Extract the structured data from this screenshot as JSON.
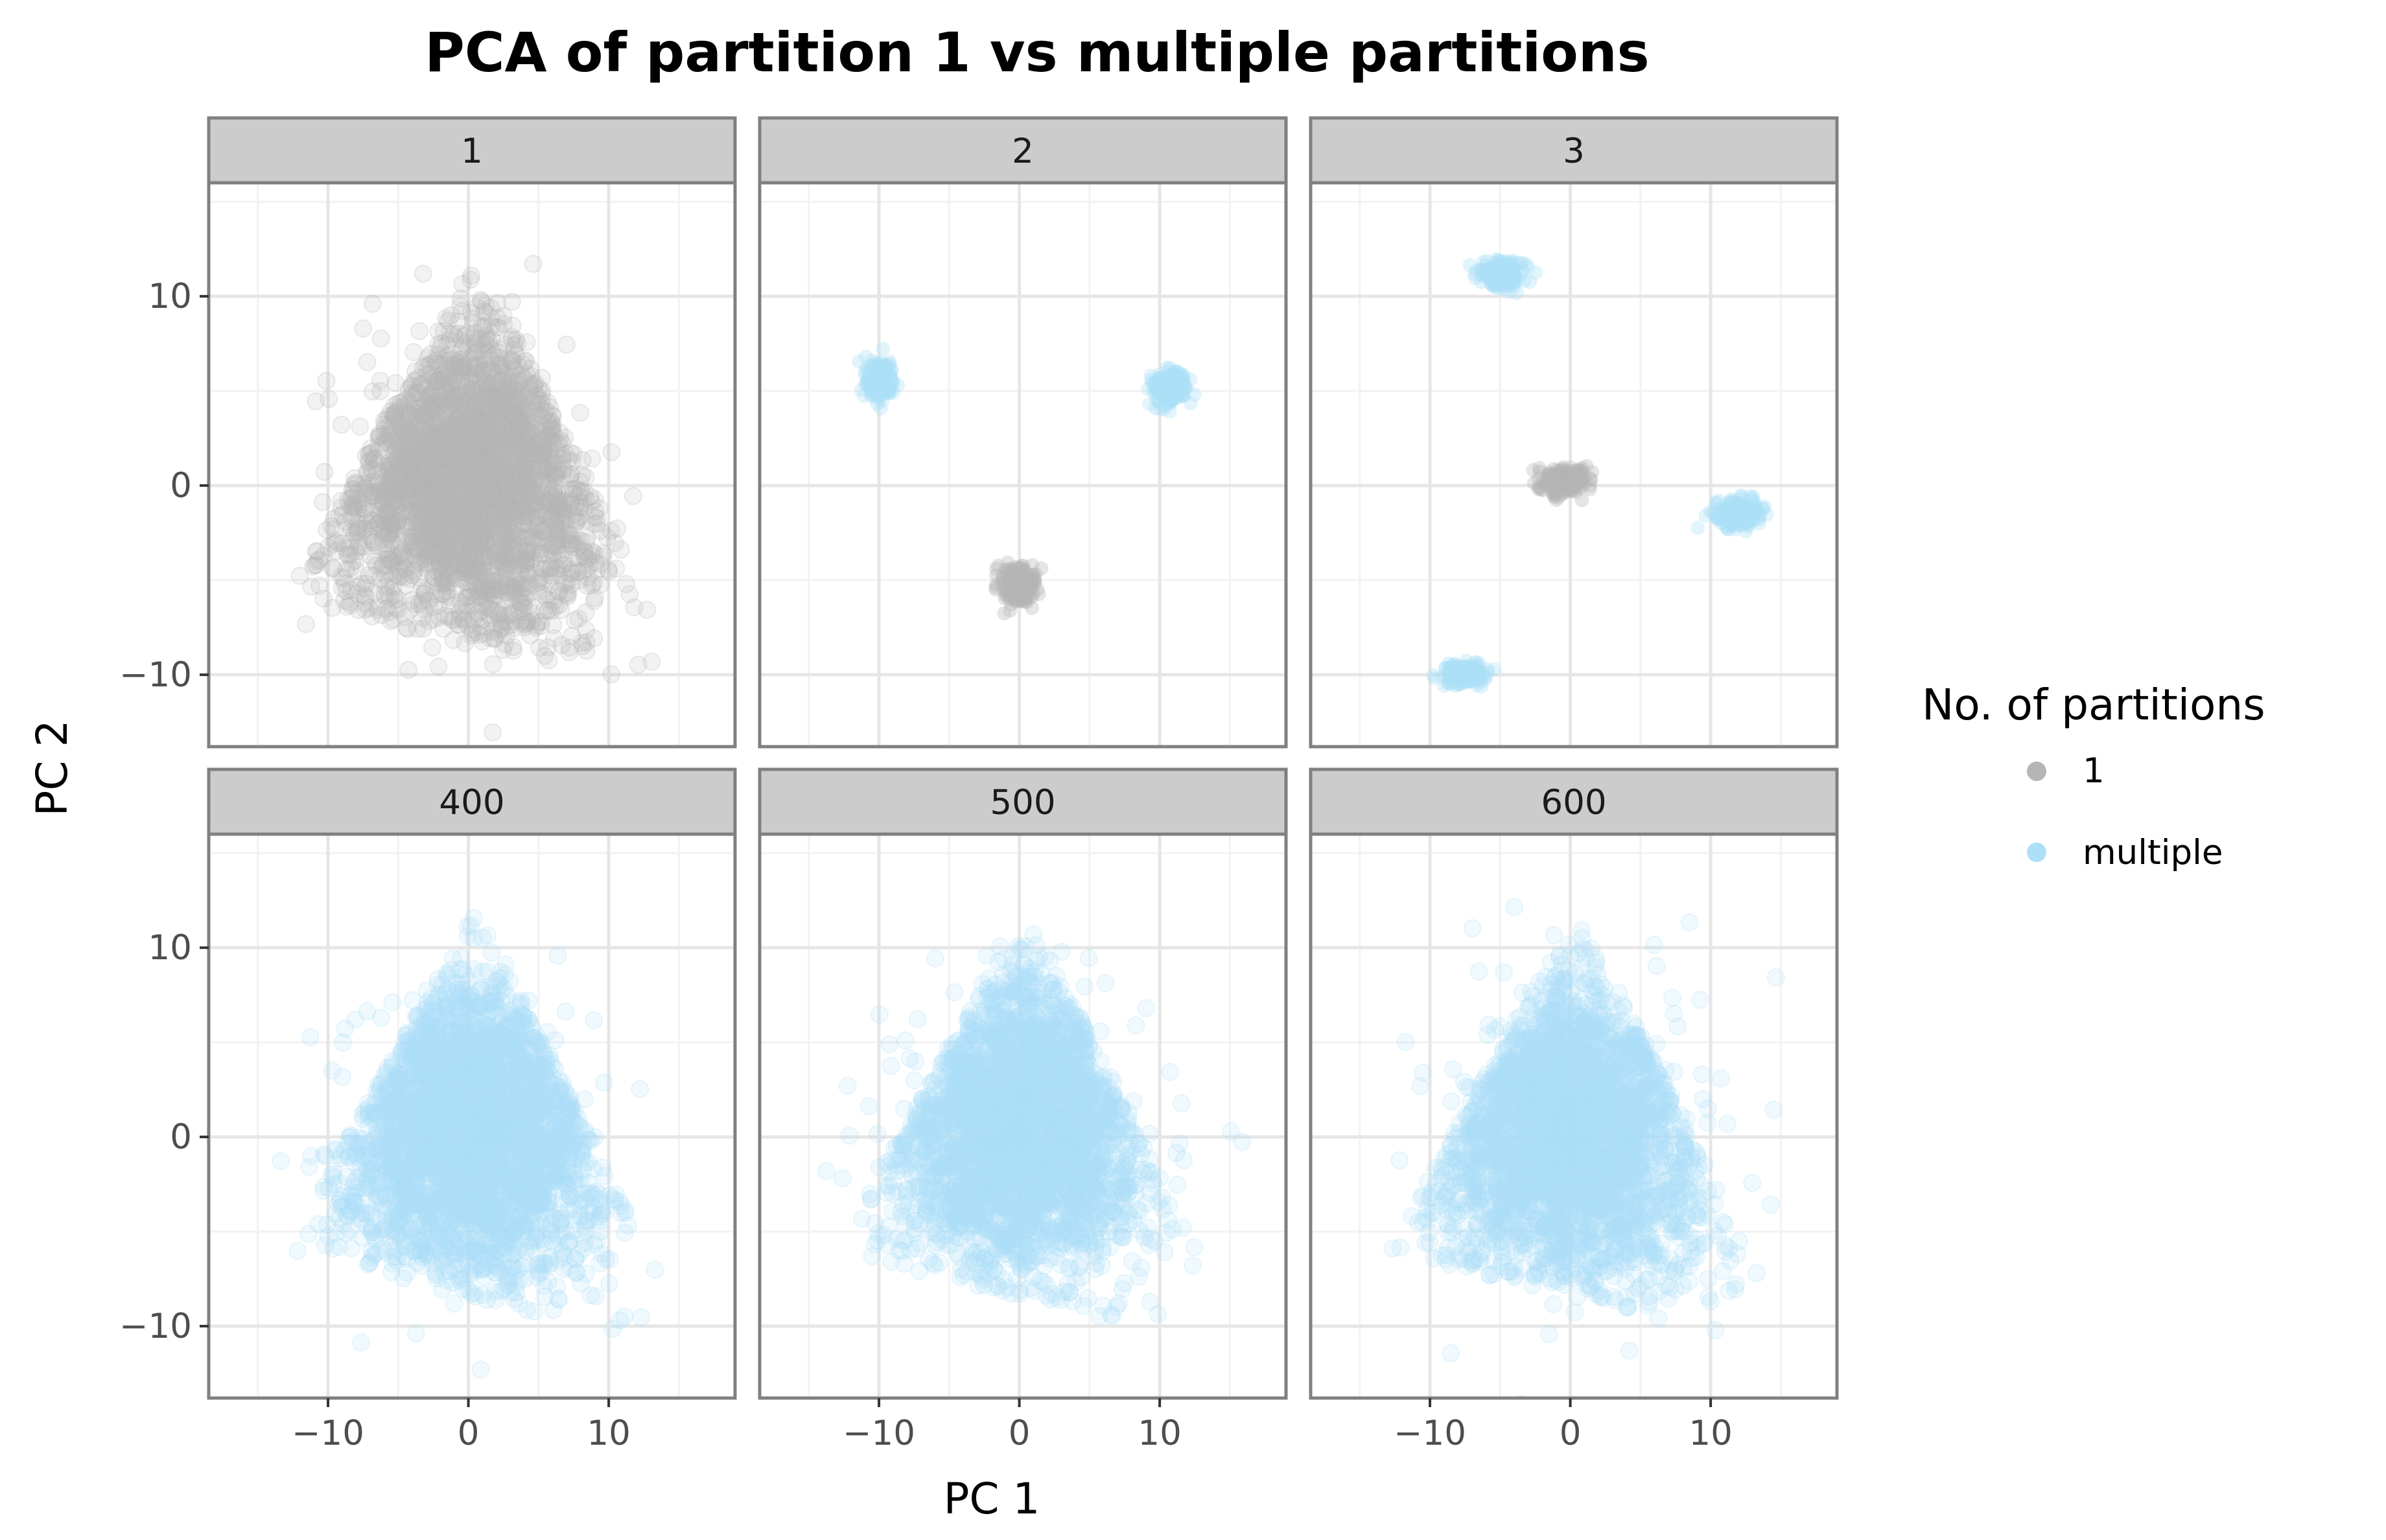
{
  "chart_data": {
    "type": "scatter",
    "title": "PCA of partition 1 vs multiple partitions",
    "xlabel": "PC 1",
    "ylabel": "PC 2",
    "xlim": [
      -18.5,
      19
    ],
    "ylim": [
      -13.8,
      16
    ],
    "x_ticks": [
      -10,
      0,
      10
    ],
    "y_ticks": [
      -10,
      0,
      10
    ],
    "x_tick_labels": [
      "−10",
      "0",
      "10"
    ],
    "y_tick_labels": [
      "−10",
      "0",
      "10"
    ],
    "grid": true,
    "facet_layout": "2 rows x 3 columns, shared axes",
    "legend": {
      "title": "No. of partitions",
      "position": "right",
      "entries": [
        {
          "label": "1",
          "color": "#B5B5B5"
        },
        {
          "label": "multiple",
          "color": "#ADDFF7"
        }
      ]
    },
    "panels": [
      {
        "label": "1",
        "groups": [
          {
            "series": "1",
            "shape": "triangle-cloud",
            "vertices": [
              [
                -13,
                -6
              ],
              [
                0.5,
                12
              ],
              [
                16.5,
                -11.5
              ]
            ],
            "center": [
              0,
              0.5
            ],
            "approx_n": 4000
          }
        ]
      },
      {
        "label": "2",
        "groups": [
          {
            "series": "multiple",
            "shape": "cluster",
            "center": [
              -10,
              5.6
            ],
            "spread": [
              0.9,
              0.9
            ]
          },
          {
            "series": "multiple",
            "shape": "cluster",
            "center": [
              10.8,
              5.2
            ],
            "spread": [
              1.0,
              0.8
            ]
          },
          {
            "series": "1",
            "shape": "cluster",
            "center": [
              0,
              -5.3
            ],
            "spread": [
              1.1,
              0.9
            ]
          }
        ]
      },
      {
        "label": "3",
        "groups": [
          {
            "series": "multiple",
            "shape": "cluster",
            "center": [
              -5,
              11.2
            ],
            "spread": [
              1.4,
              0.6
            ]
          },
          {
            "series": "1",
            "shape": "cluster",
            "center": [
              -0.5,
              0.3
            ],
            "spread": [
              1.6,
              0.6
            ]
          },
          {
            "series": "multiple",
            "shape": "cluster",
            "center": [
              12,
              -1.5
            ],
            "spread": [
              1.5,
              0.6
            ]
          },
          {
            "series": "multiple",
            "shape": "cluster",
            "center": [
              -7.5,
              -10
            ],
            "spread": [
              1.3,
              0.5
            ]
          }
        ]
      },
      {
        "label": "400",
        "groups": [
          {
            "series": "multiple",
            "shape": "triangle-cloud",
            "vertices": [
              [
                -13,
                -6
              ],
              [
                0.5,
                12
              ],
              [
                16.5,
                -11.5
              ]
            ],
            "center": [
              0,
              0.5
            ],
            "approx_n": 4000
          }
        ]
      },
      {
        "label": "500",
        "groups": [
          {
            "series": "multiple",
            "shape": "triangle-cloud",
            "vertices": [
              [
                -13,
                -6
              ],
              [
                0.5,
                12
              ],
              [
                16.5,
                -11.5
              ]
            ],
            "center": [
              0,
              0.5
            ],
            "approx_n": 4000
          }
        ]
      },
      {
        "label": "600",
        "groups": [
          {
            "series": "multiple",
            "shape": "triangle-cloud",
            "vertices": [
              [
                -13,
                -6
              ],
              [
                0.5,
                12
              ],
              [
                16.5,
                -11.5
              ]
            ],
            "center": [
              0,
              0.5
            ],
            "approx_n": 4000
          }
        ]
      }
    ]
  }
}
